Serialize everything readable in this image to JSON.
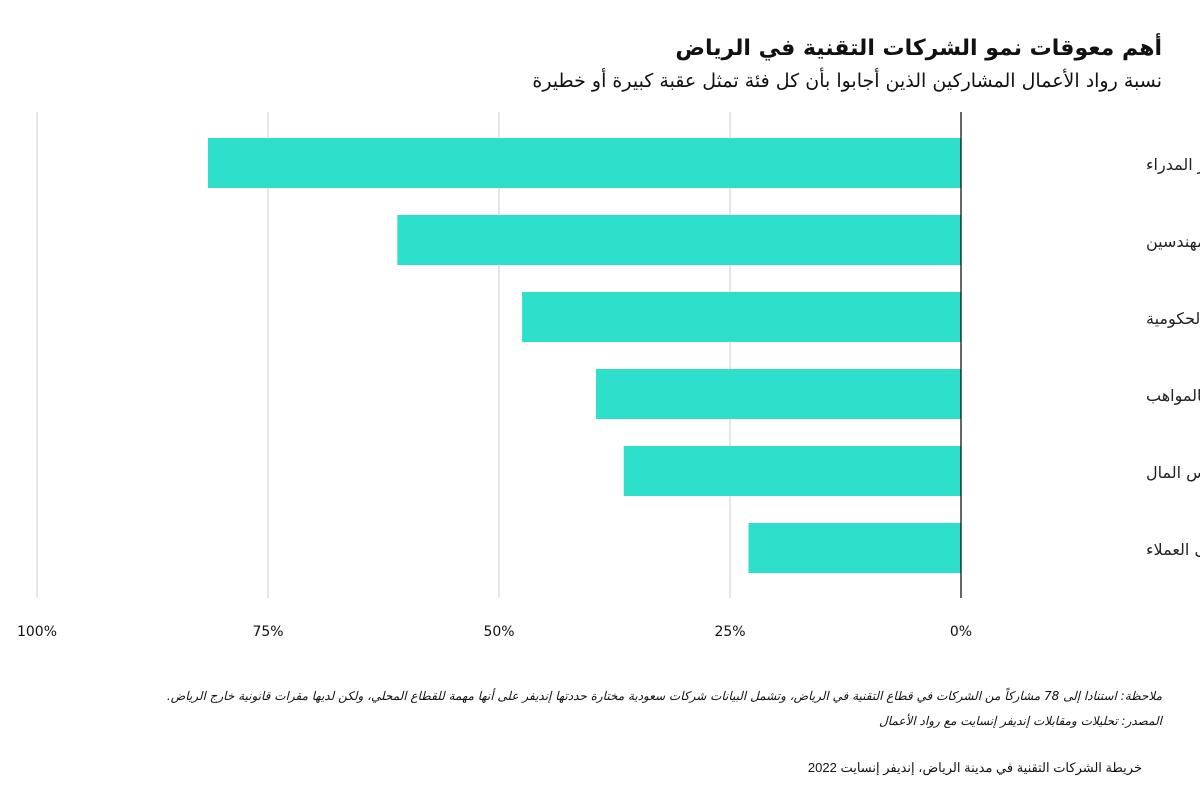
{
  "chart_data": {
    "type": "bar",
    "orientation": "horizontal",
    "title": "أهم معوقات نمو الشركات التقنية في الرياض",
    "subtitle": "نسبة رواد الأعمال المشاركين الذين أجابوا بأن كل فئة تمثل عقبة كبيرة أو خطيرة",
    "categories": [
      "توافر المدراء",
      "توافر المهندسين",
      "اللوائح الحكومية",
      "الاحتفاظ بالمواهب",
      "الحصول على رأس المال",
      "الوصول إلى العملاء"
    ],
    "values": [
      81.5,
      61,
      47.5,
      39.5,
      36.5,
      23
    ],
    "xlim": [
      0,
      100
    ],
    "x_direction": "right-to-left",
    "ticks": [
      0,
      25,
      50,
      75,
      100
    ],
    "tick_labels": [
      "0%",
      "25%",
      "50%",
      "75%",
      "100%"
    ],
    "grid": true,
    "bar_color": "#2ee0cc",
    "gridline_color": "#cccccc"
  },
  "note": "ملاحظة: استنادا إلى 78 مشاركاً من الشركات في قطاع التقنية في الرياض، وتشمل البيانات شركات سعودية مختارة حددتها إنديفر على أنها مهمة للقطاع المحلي، ولكن لديها مقرات قانونية خارج الرياض.",
  "source": "المصدر: تحليلات ومقابلات إنديفر إنسايت مع رواد الأعمال",
  "footer": "خريطة الشركات التقنية في مدينة الرياض، إنديفر إنسايت 2022"
}
